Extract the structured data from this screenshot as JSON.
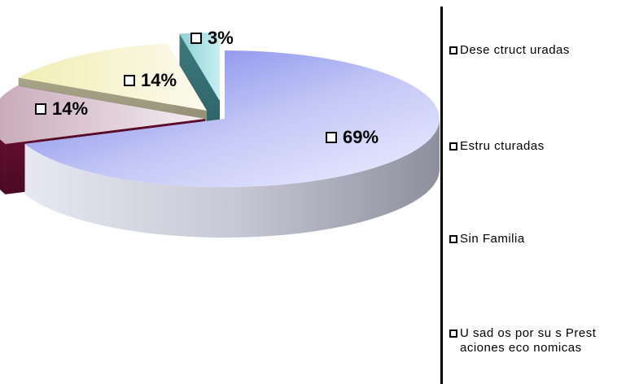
{
  "chart_data": {
    "type": "pie",
    "title": "",
    "slices": [
      {
        "name": "Desestructuradas",
        "value": 69,
        "label": "69%",
        "color": "#a9aef0"
      },
      {
        "name": "Estructuradas",
        "value": 14,
        "label": "14%",
        "color": "#7a1840"
      },
      {
        "name": "Sin Familia",
        "value": 14,
        "label": "14%",
        "color": "#f4f0b8"
      },
      {
        "name": "Usados por sus Prestaciones economicas",
        "value": 3,
        "label": "3%",
        "color": "#8ed0d4"
      }
    ],
    "legend": {
      "position": "right",
      "entries": [
        "Dese ctruct uradas",
        "Estru cturadas",
        "Sin Familia",
        "U sad os por su s Prest aciones eco nomicas"
      ]
    }
  }
}
